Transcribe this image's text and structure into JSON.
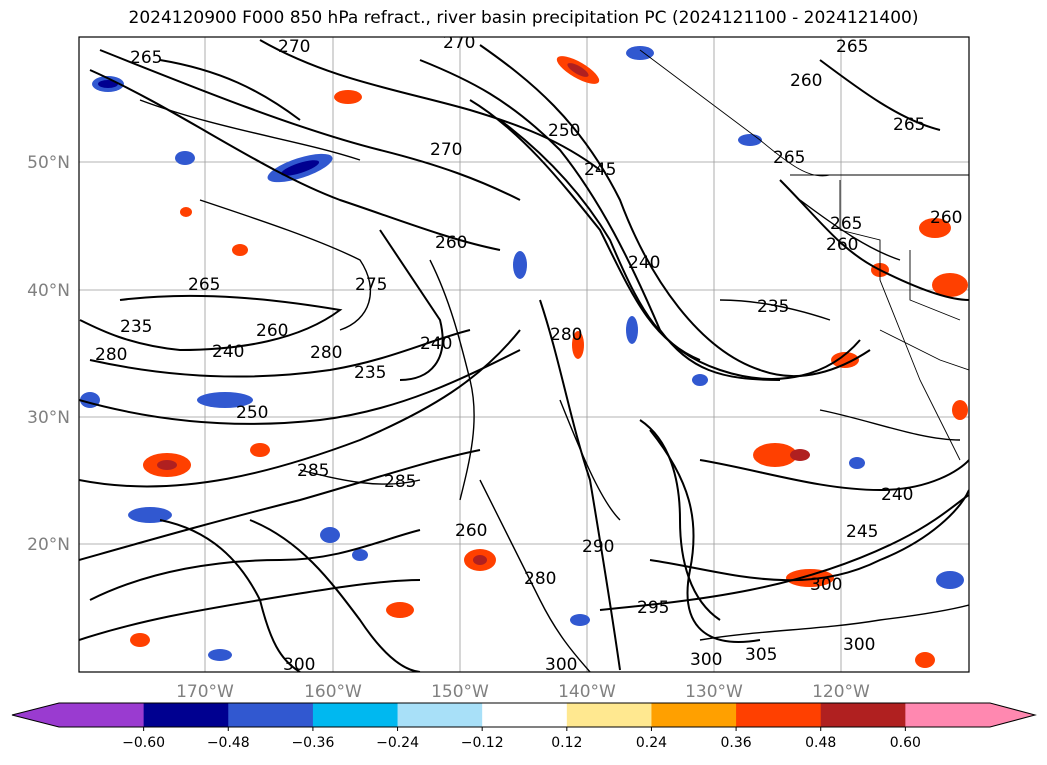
{
  "title": "2024120900 F000 850 hPa refract., river basin precipitation PC (2024121100 - 2024121400)",
  "axes": {
    "lat_labels": [
      "50°N",
      "40°N",
      "30°N",
      "20°N"
    ],
    "lon_labels": [
      "170°W",
      "160°W",
      "150°W",
      "140°W",
      "130°W",
      "120°W"
    ],
    "label_color": "#808080"
  },
  "colorbar": {
    "ticks": [
      "−0.60",
      "−0.48",
      "−0.36",
      "−0.24",
      "−0.12",
      "0.12",
      "0.24",
      "0.36",
      "0.48",
      "0.60"
    ],
    "colors": [
      "#9a3bd0",
      "#000090",
      "#3158d0",
      "#00b8f0",
      "#a8e0f8",
      "#ffffff",
      "#ffe890",
      "#ffa000",
      "#ff4000",
      "#b02020",
      "#ff88b0"
    ],
    "extend": "both"
  },
  "contour_labels": [
    {
      "text": "265"
    },
    {
      "text": "270"
    },
    {
      "text": "270"
    },
    {
      "text": "265"
    },
    {
      "text": "260"
    },
    {
      "text": "265"
    },
    {
      "text": "265"
    },
    {
      "text": "250"
    },
    {
      "text": "245"
    },
    {
      "text": "270"
    },
    {
      "text": "265"
    },
    {
      "text": "260"
    },
    {
      "text": "260"
    },
    {
      "text": "260"
    },
    {
      "text": "265"
    },
    {
      "text": "275"
    },
    {
      "text": "240"
    },
    {
      "text": "235"
    },
    {
      "text": "235"
    },
    {
      "text": "260"
    },
    {
      "text": "240"
    },
    {
      "text": "280"
    },
    {
      "text": "240"
    },
    {
      "text": "235"
    },
    {
      "text": "280"
    },
    {
      "text": "250"
    },
    {
      "text": "285"
    },
    {
      "text": "285"
    },
    {
      "text": "280"
    },
    {
      "text": "240"
    },
    {
      "text": "245"
    },
    {
      "text": "260"
    },
    {
      "text": "280"
    },
    {
      "text": "290"
    },
    {
      "text": "300"
    },
    {
      "text": "295"
    },
    {
      "text": "300"
    },
    {
      "text": "300"
    },
    {
      "text": "305"
    },
    {
      "text": "300"
    },
    {
      "text": "300"
    }
  ]
}
